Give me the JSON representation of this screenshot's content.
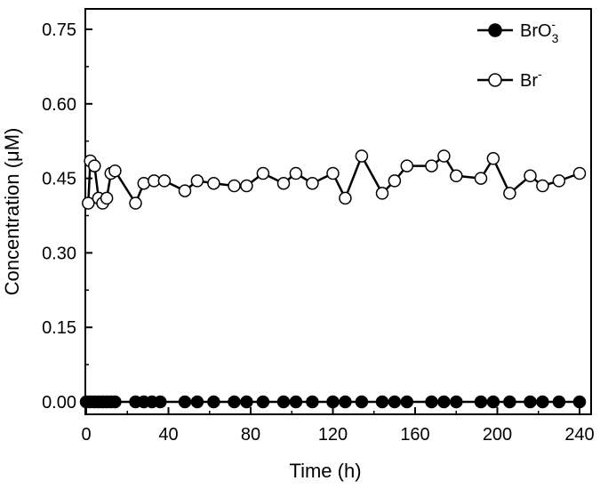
{
  "chart_data": {
    "type": "line",
    "title": "",
    "xlabel": "Time (h)",
    "ylabel": "Concentration (μM)",
    "xlim": [
      0,
      240
    ],
    "ylim": [
      0,
      0.78
    ],
    "x_ticks": [
      0,
      40,
      80,
      120,
      160,
      200,
      240
    ],
    "y_ticks": [
      0.0,
      0.15,
      0.3,
      0.45,
      0.6,
      0.75
    ],
    "x_tick_labels": [
      "0",
      "40",
      "80",
      "120",
      "160",
      "200",
      "240"
    ],
    "y_tick_labels": [
      "0.00",
      "0.15",
      "0.30",
      "0.45",
      "0.60",
      "0.75"
    ],
    "grid": false,
    "legend_position": "top-right",
    "series": [
      {
        "name": "BrO3-",
        "legend": {
          "base": "BrO",
          "sub": "3",
          "sup": "-"
        },
        "marker": "filled-circle",
        "color": "#000000",
        "x": [
          0,
          2,
          4,
          6,
          8,
          10,
          12,
          14,
          24,
          28,
          32,
          36,
          48,
          54,
          62,
          72,
          78,
          86,
          96,
          102,
          110,
          120,
          126,
          134,
          144,
          150,
          156,
          168,
          174,
          180,
          192,
          198,
          206,
          216,
          222,
          230,
          240
        ],
        "y": [
          0,
          0,
          0,
          0,
          0,
          0,
          0,
          0,
          0,
          0,
          0,
          0,
          0,
          0,
          0,
          0,
          0,
          0,
          0,
          0,
          0,
          0,
          0,
          0,
          0,
          0,
          0,
          0,
          0,
          0,
          0,
          0,
          0,
          0,
          0,
          0,
          0
        ]
      },
      {
        "name": "Br-",
        "legend": {
          "base": "Br",
          "sub": "",
          "sup": "-"
        },
        "marker": "open-circle",
        "color": "#000000",
        "x": [
          1,
          2,
          4,
          6,
          8,
          10,
          12,
          14,
          24,
          28,
          33,
          38,
          48,
          54,
          62,
          72,
          78,
          86,
          96,
          102,
          110,
          120,
          126,
          134,
          144,
          150,
          156,
          168,
          174,
          180,
          192,
          198,
          206,
          216,
          222,
          230,
          240
        ],
        "y": [
          0.4,
          0.485,
          0.475,
          0.41,
          0.4,
          0.41,
          0.46,
          0.465,
          0.4,
          0.44,
          0.445,
          0.445,
          0.425,
          0.445,
          0.44,
          0.435,
          0.435,
          0.46,
          0.44,
          0.46,
          0.44,
          0.46,
          0.41,
          0.495,
          0.42,
          0.445,
          0.475,
          0.475,
          0.495,
          0.455,
          0.45,
          0.49,
          0.42,
          0.455,
          0.435,
          0.445,
          0.46
        ]
      }
    ]
  }
}
